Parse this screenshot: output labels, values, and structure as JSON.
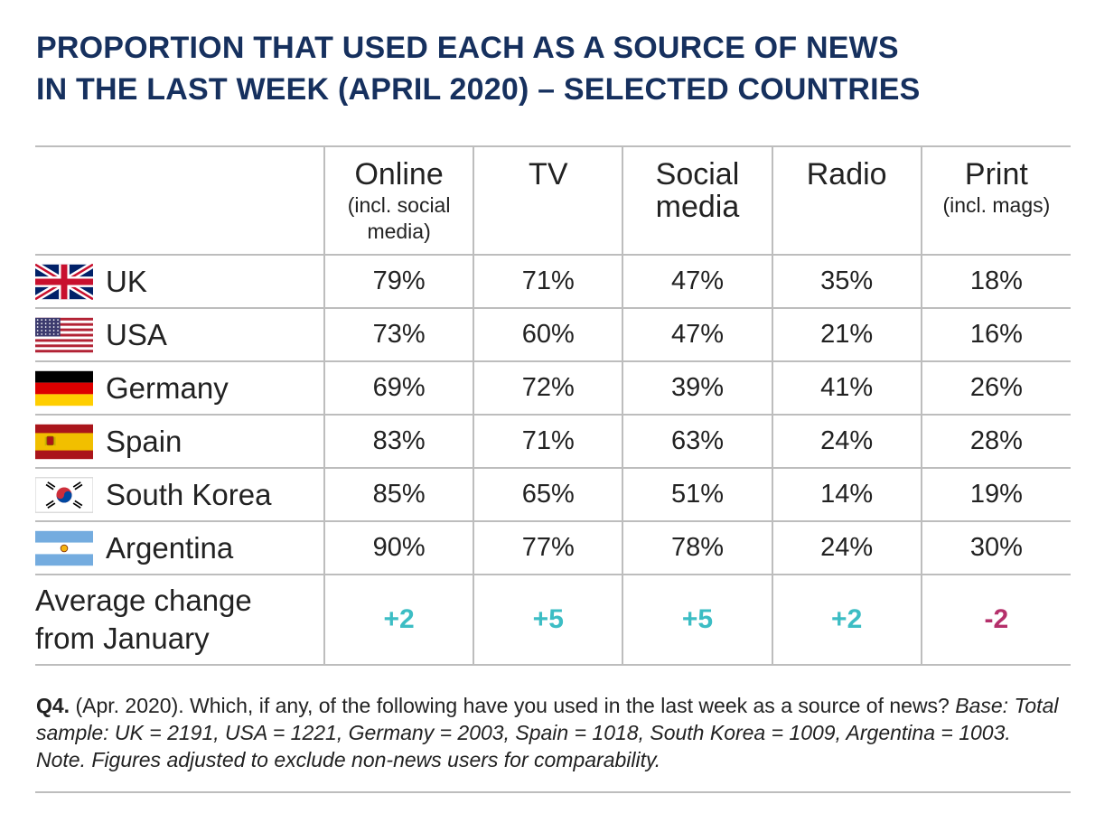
{
  "title_lines": [
    "PROPORTION THAT USED EACH AS A SOURCE OF NEWS",
    "IN THE LAST WEEK (APRIL 2020) – SELECTED COUNTRIES"
  ],
  "chart_data": {
    "type": "table",
    "title": "PROPORTION THAT USED EACH AS A SOURCE OF NEWS IN THE LAST WEEK (APRIL 2020) – SELECTED COUNTRIES",
    "columns": [
      {
        "label": "Online",
        "sub": "(incl. social media)"
      },
      {
        "label": "TV",
        "sub": ""
      },
      {
        "label": "Social media",
        "sub": ""
      },
      {
        "label": "Radio",
        "sub": ""
      },
      {
        "label": "Print",
        "sub": "(incl. mags)"
      }
    ],
    "rows": [
      {
        "country": "UK",
        "flag": "uk-flag-icon",
        "values": [
          "79%",
          "71%",
          "47%",
          "35%",
          "18%"
        ]
      },
      {
        "country": "USA",
        "flag": "usa-flag-icon",
        "values": [
          "73%",
          "60%",
          "47%",
          "21%",
          "16%"
        ]
      },
      {
        "country": "Germany",
        "flag": "germany-flag-icon",
        "values": [
          "69%",
          "72%",
          "39%",
          "41%",
          "26%"
        ]
      },
      {
        "country": "Spain",
        "flag": "spain-flag-icon",
        "values": [
          "83%",
          "71%",
          "63%",
          "24%",
          "28%"
        ]
      },
      {
        "country": "South Korea",
        "flag": "south-korea-flag-icon",
        "values": [
          "85%",
          "65%",
          "51%",
          "14%",
          "19%"
        ]
      },
      {
        "country": "Argentina",
        "flag": "argentina-flag-icon",
        "values": [
          "90%",
          "77%",
          "78%",
          "24%",
          "30%"
        ]
      }
    ],
    "average_change": {
      "label_lines": [
        "Average change",
        "from January"
      ],
      "values": [
        "+2",
        "+5",
        "+5",
        "+2",
        "-2"
      ]
    }
  },
  "colors": {
    "title": "#16305e",
    "positive_change": "#3cbdc4",
    "negative_change": "#b5306b",
    "grid": "#bdbdbd"
  },
  "footnote": {
    "q": "Q4.",
    "question": " (Apr. 2020). Which, if any, of the following have you used in the last week as a source of news? ",
    "base": "Base: Total sample: UK = 2191, USA = 1221, Germany = 2003, Spain = 1018, South Korea = 1009, Argentina = 1003. Note. Figures adjusted to exclude non-news users for comparability."
  }
}
